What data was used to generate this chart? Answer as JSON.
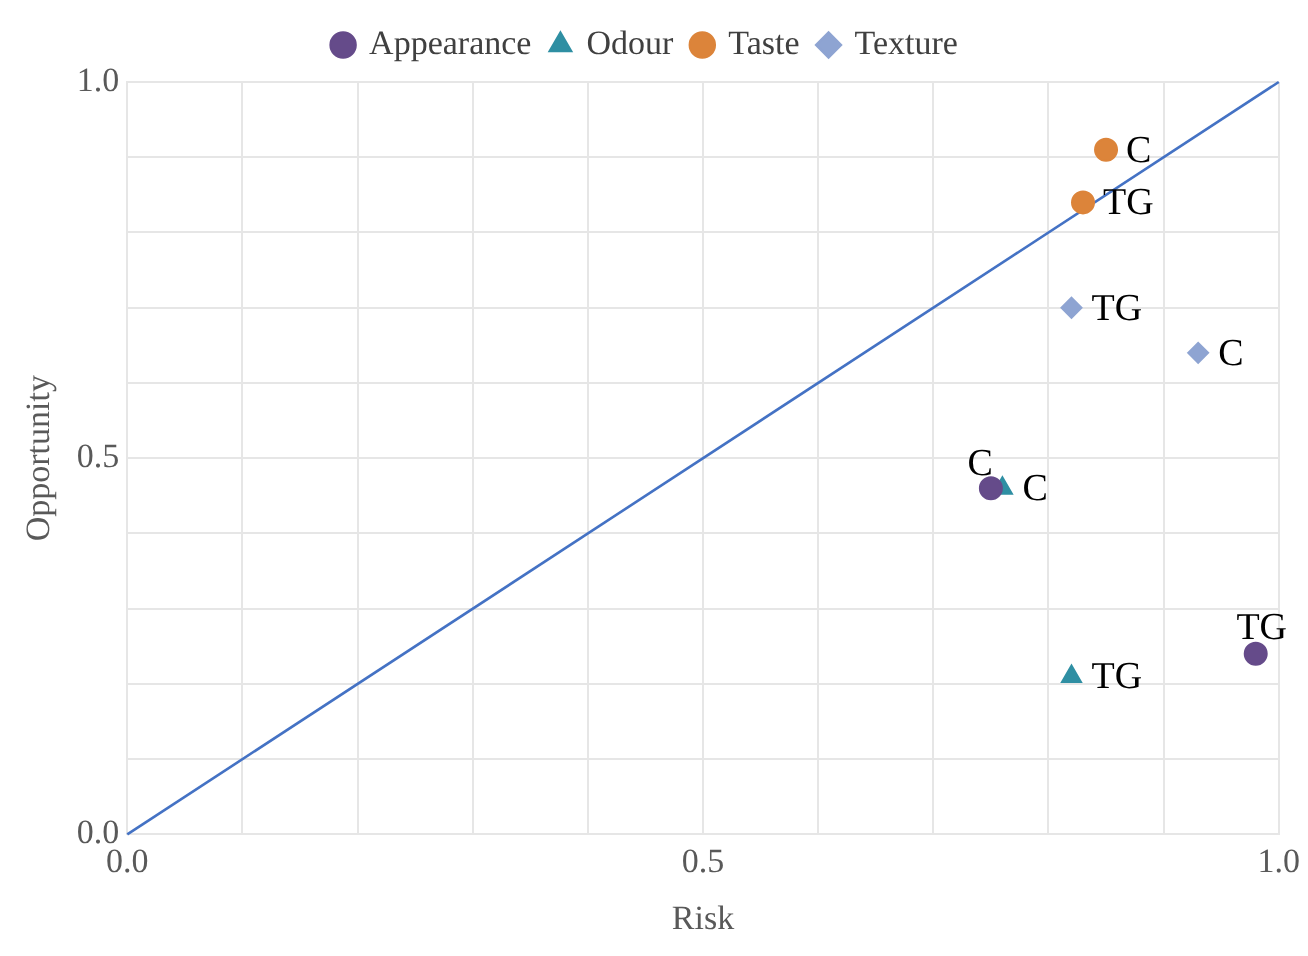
{
  "chart_data": {
    "type": "scatter",
    "xlabel": "Risk",
    "ylabel": "Opportunity",
    "xlim": [
      0,
      1
    ],
    "ylim": [
      0,
      1
    ],
    "xticks": [
      {
        "value": 0,
        "label": "0.0"
      },
      {
        "value": 0.1,
        "label": null
      },
      {
        "value": 0.2,
        "label": null
      },
      {
        "value": 0.3,
        "label": null
      },
      {
        "value": 0.4,
        "label": null
      },
      {
        "value": 0.5,
        "label": "0.5"
      },
      {
        "value": 0.6,
        "label": null
      },
      {
        "value": 0.7,
        "label": null
      },
      {
        "value": 0.8,
        "label": null
      },
      {
        "value": 0.9,
        "label": null
      },
      {
        "value": 1,
        "label": "1.0"
      }
    ],
    "yticks": [
      {
        "value": 0,
        "label": "0.0"
      },
      {
        "value": 0.1,
        "label": null
      },
      {
        "value": 0.2,
        "label": null
      },
      {
        "value": 0.3,
        "label": null
      },
      {
        "value": 0.4,
        "label": null
      },
      {
        "value": 0.5,
        "label": "0.5"
      },
      {
        "value": 0.6,
        "label": null
      },
      {
        "value": 0.7,
        "label": null
      },
      {
        "value": 0.8,
        "label": null
      },
      {
        "value": 0.9,
        "label": null
      },
      {
        "value": 1,
        "label": "1.0"
      }
    ],
    "grid": true,
    "legend": "top",
    "series": [
      {
        "name": "Appearance",
        "color": "#654b8a",
        "marker": "circle",
        "x": [
          0.75,
          0.98
        ],
        "values": [
          0.46,
          0.24
        ]
      },
      {
        "name": "Odour",
        "color": "#2f8fa3",
        "marker": "triangle",
        "x": [
          0.76,
          0.82
        ],
        "values": [
          0.46,
          0.21
        ]
      },
      {
        "name": "Taste",
        "color": "#dc843a",
        "marker": "circle",
        "x": [
          0.85,
          0.83
        ],
        "values": [
          0.91,
          0.84
        ]
      },
      {
        "name": "Texture",
        "color": "#8ea4d2",
        "marker": "diamond",
        "x": [
          0.93,
          0.82
        ],
        "values": [
          0.64,
          0.7
        ]
      },
      {
        "type": "line",
        "color": "#4472c4",
        "marker": "none",
        "x": [
          0,
          1
        ],
        "values": [
          0,
          1
        ]
      }
    ],
    "annotations": [
      {
        "text": "C",
        "x": 0.75,
        "y": 0.46
      },
      {
        "text": "TG",
        "x": 0.98,
        "y": 0.24
      },
      {
        "text": "C",
        "x": 0.76,
        "y": 0.46
      },
      {
        "text": "TG",
        "x": 0.82,
        "y": 0.21
      },
      {
        "text": "C",
        "x": 0.85,
        "y": 0.91
      },
      {
        "text": "TG",
        "x": 0.83,
        "y": 0.84
      },
      {
        "text": "C",
        "x": 0.93,
        "y": 0.64
      },
      {
        "text": "TG",
        "x": 0.82,
        "y": 0.7
      }
    ]
  }
}
